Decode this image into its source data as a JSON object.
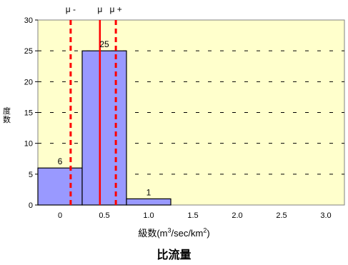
{
  "chart_data": {
    "type": "bar",
    "bins": [
      {
        "from": 0.0,
        "to": 0.5,
        "value": 6
      },
      {
        "from": 0.5,
        "to": 1.0,
        "value": 25
      },
      {
        "from": 1.0,
        "to": 1.5,
        "value": 1
      }
    ],
    "x_ticks": [
      "0",
      "0.5",
      "1.0",
      "1.5",
      "2.0",
      "2.5",
      "3.0",
      "~"
    ],
    "y_ticks": [
      "0",
      "5",
      "10",
      "15",
      "20",
      "25",
      "30"
    ],
    "ylim": [
      0,
      30
    ],
    "xlabel_main": "級数(m",
    "xlabel_sup1": "3",
    "xlabel_mid": "/sec/km",
    "xlabel_sup2": "2",
    "xlabel_end": ")",
    "ylabel": "度数",
    "title": "比流量",
    "grid": true,
    "colors": {
      "plot_bg": "#ffffcc",
      "bar": "#9999ff",
      "mean_line": "#ff0000",
      "sigma_line": "#ff0000"
    },
    "reference_lines": [
      {
        "label": "μ -",
        "x": 0.37,
        "style": "dashed"
      },
      {
        "label": "μ",
        "x": 0.7,
        "style": "solid"
      },
      {
        "label": "μ +",
        "x": 0.88,
        "style": "dashed"
      }
    ]
  }
}
